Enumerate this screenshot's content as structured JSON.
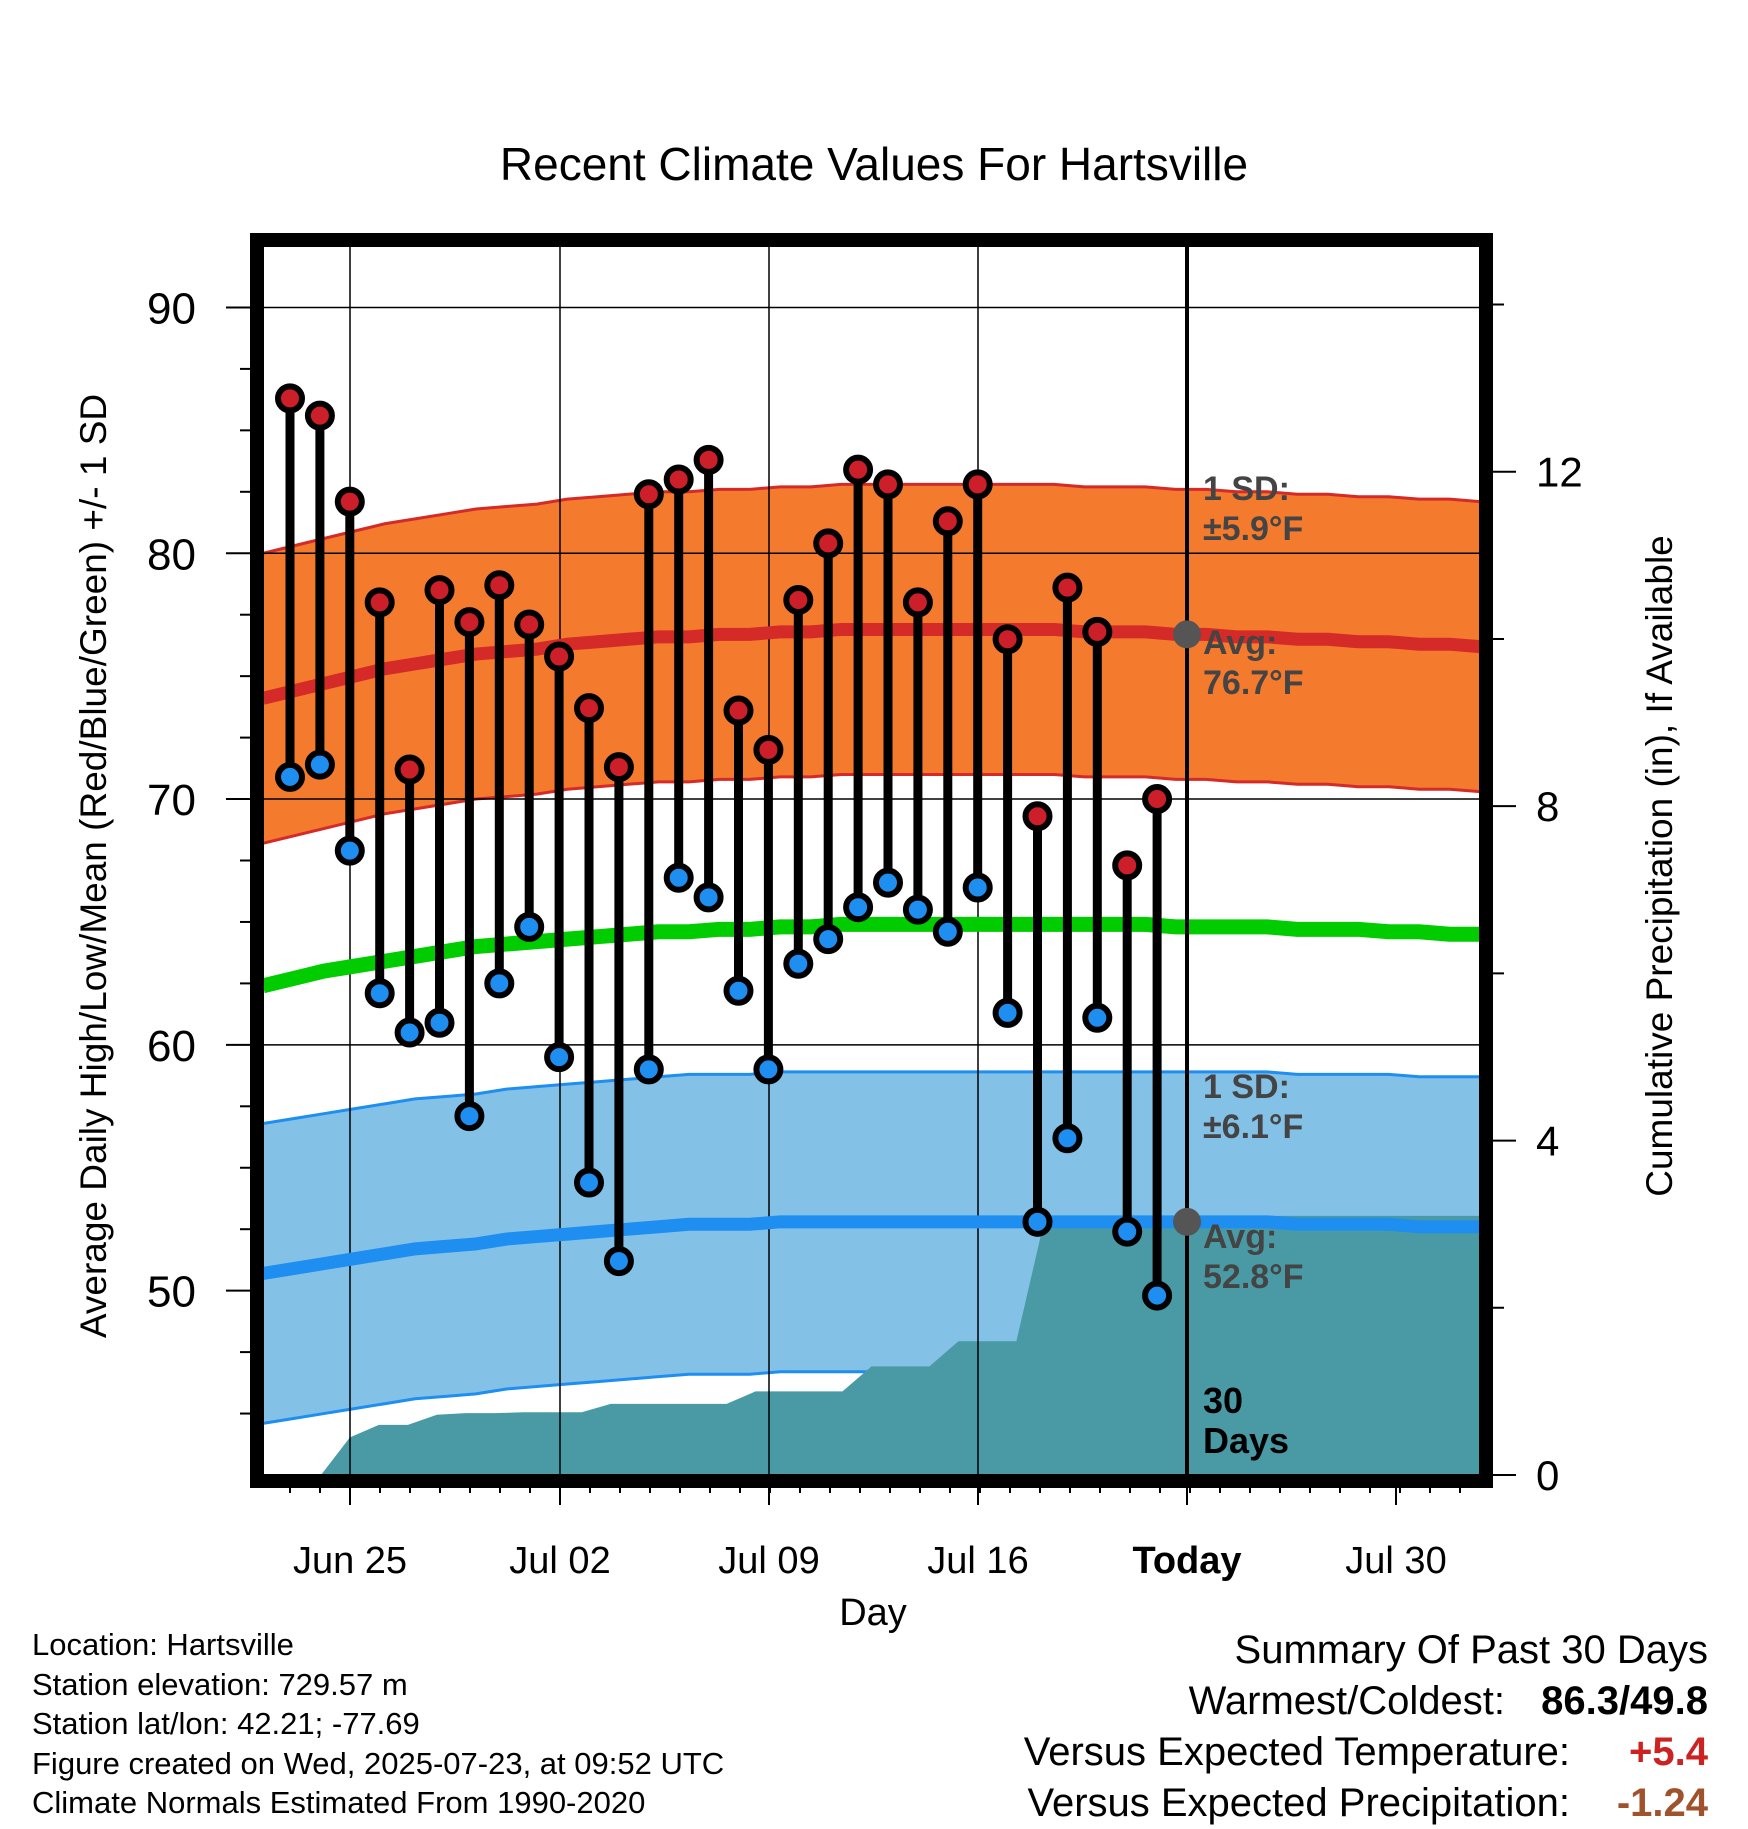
{
  "chart_data": {
    "type": "line",
    "title": "Recent Climate Values For Hartsville",
    "xlabel": "Day",
    "ylabel_left": "Average Daily High/Low/Mean (Red/Blue/Green) +/- 1 SD",
    "ylabel_right": "Cumulative Precipitation (in), If Available",
    "ylim_left": [
      42.5,
      92.5
    ],
    "ylim_right": [
      0,
      14.7
    ],
    "x_tick_labels": [
      "Jun 25",
      "Jul 02",
      "Jul 09",
      "Jul 16",
      "Today",
      "Jul 30"
    ],
    "y_left_ticks": [
      "90",
      "80",
      "70",
      "60",
      "50"
    ],
    "y_right_ticks": [
      "12",
      "8",
      "4",
      "0"
    ],
    "daily_high": [
      86.3,
      85.6,
      82.1,
      78.0,
      71.2,
      78.5,
      77.2,
      78.7,
      77.1,
      75.8,
      73.7,
      71.3,
      82.4,
      83.0,
      83.8,
      73.6,
      72.0,
      78.1,
      80.4,
      83.4,
      82.8,
      78.0,
      81.3,
      82.8,
      76.5,
      69.3,
      78.6,
      76.8,
      67.3,
      70.0
    ],
    "daily_low": [
      70.9,
      71.4,
      67.9,
      62.1,
      60.5,
      60.9,
      57.1,
      62.5,
      64.8,
      59.5,
      54.4,
      51.2,
      59.0,
      66.8,
      66.0,
      62.2,
      59.0,
      63.3,
      64.3,
      65.6,
      66.6,
      65.5,
      64.6,
      66.4,
      61.3,
      52.8,
      56.2,
      61.1,
      52.4,
      49.8
    ],
    "normal_high": [
      74.1,
      74.4,
      74.7,
      75.0,
      75.3,
      75.5,
      75.7,
      75.9,
      76.0,
      76.1,
      76.3,
      76.4,
      76.5,
      76.6,
      76.6,
      76.7,
      76.7,
      76.8,
      76.8,
      76.9,
      76.9,
      76.9,
      76.9,
      76.9,
      76.9,
      76.9,
      76.9,
      76.8,
      76.8,
      76.8,
      76.7,
      76.7,
      76.6,
      76.6,
      76.5,
      76.5,
      76.4,
      76.4,
      76.3,
      76.3,
      76.2
    ],
    "normal_low": [
      50.7,
      50.9,
      51.1,
      51.3,
      51.5,
      51.7,
      51.8,
      51.9,
      52.1,
      52.2,
      52.3,
      52.4,
      52.5,
      52.6,
      52.7,
      52.7,
      52.7,
      52.8,
      52.8,
      52.8,
      52.8,
      52.8,
      52.8,
      52.8,
      52.8,
      52.8,
      52.8,
      52.8,
      52.8,
      52.8,
      52.8,
      52.8,
      52.8,
      52.8,
      52.7,
      52.7,
      52.7,
      52.7,
      52.6,
      52.6,
      52.6
    ],
    "normal_mean": [
      62.4,
      62.7,
      63.0,
      63.2,
      63.4,
      63.6,
      63.8,
      64.0,
      64.1,
      64.2,
      64.3,
      64.4,
      64.5,
      64.6,
      64.6,
      64.7,
      64.7,
      64.8,
      64.8,
      64.9,
      64.9,
      64.9,
      64.9,
      64.9,
      64.9,
      64.9,
      64.9,
      64.9,
      64.9,
      64.9,
      64.8,
      64.8,
      64.8,
      64.8,
      64.7,
      64.7,
      64.7,
      64.6,
      64.6,
      64.5,
      64.5
    ],
    "high_sd": 5.9,
    "low_sd": 6.1,
    "cumulative_precip": [
      0.0,
      0.0,
      0.0,
      0.45,
      0.6,
      0.6,
      0.72,
      0.74,
      0.74,
      0.75,
      0.75,
      0.75,
      0.85,
      0.85,
      0.85,
      0.85,
      0.85,
      1.0,
      1.0,
      1.0,
      1.0,
      1.3,
      1.3,
      1.3,
      1.6,
      1.6,
      1.6,
      3.1,
      3.1,
      3.1,
      3.1,
      3.1,
      3.1,
      3.1,
      3.1,
      3.1,
      3.1,
      3.1,
      3.1,
      3.1,
      3.1,
      3.1,
      3.1
    ],
    "annotations": {
      "high_sd_label": [
        "1 SD:",
        "±5.9°F"
      ],
      "high_avg_label": [
        "Avg:",
        "76.7°F"
      ],
      "low_sd_label": [
        "1 SD:",
        "±6.1°F"
      ],
      "low_avg_label": [
        "Avg:",
        "52.8°F"
      ],
      "days_label": [
        "30",
        "Days"
      ]
    },
    "colors": {
      "high_band": "#f47a2e",
      "high_line": "#d42a28",
      "high_marker": "#cc1f2a",
      "low_band": "#84c1e6",
      "low_line": "#1f8ef1",
      "low_marker": "#1f8ef1",
      "mean_line": "#00cc00",
      "precip": "#4a9aa5",
      "label_text": "#444444"
    }
  },
  "footer": {
    "location": "Location: Hartsville",
    "elevation": "Station elevation: 729.57 m",
    "latlon": "Station lat/lon: 42.21; -77.69",
    "created": "Figure created on Wed, 2025-07-23, at 09:52 UTC",
    "normals": "Climate Normals Estimated From 1990-2020"
  },
  "summary": {
    "heading": "Summary Of Past 30 Days",
    "warm_cold_label": "Warmest/Coldest:",
    "warm_cold_value": "86.3/49.8",
    "temp_label": "Versus Expected Temperature:",
    "temp_value": "+5.4",
    "temp_color": "#cc2222",
    "precip_label": "Versus Expected Precipitation:",
    "precip_value": "-1.24",
    "precip_color": "#a0522d"
  }
}
